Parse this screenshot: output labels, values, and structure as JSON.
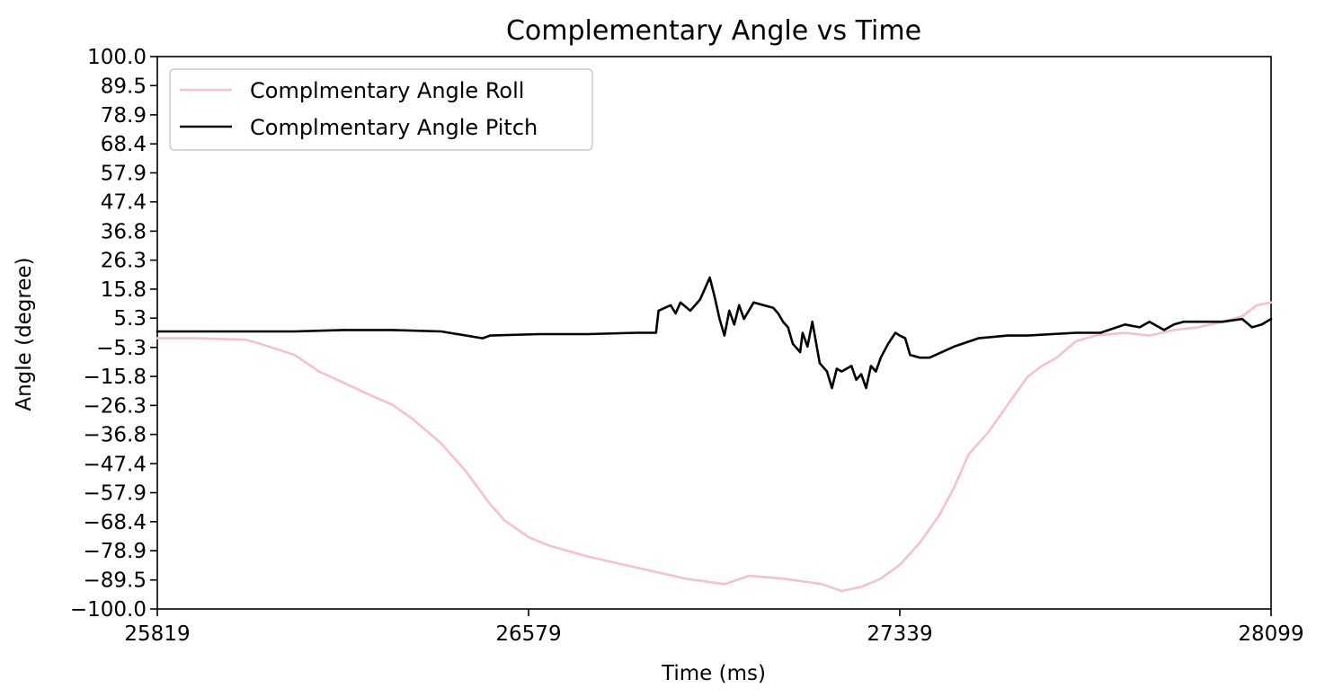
{
  "chart_data": {
    "type": "line",
    "title": "Complementary Angle vs Time",
    "xlabel": "Time (ms)",
    "ylabel": "Angle (degree)",
    "xlim": [
      25819,
      28099
    ],
    "ylim": [
      -100.0,
      100.0
    ],
    "x_ticks": [
      "25819",
      "26579",
      "27339",
      "28099"
    ],
    "y_ticks": [
      "100.0",
      "89.5",
      "78.9",
      "68.4",
      "57.9",
      "47.4",
      "36.8",
      "26.3",
      "15.8",
      "5.3",
      "-5.3",
      "-15.8",
      "-26.3",
      "-36.8",
      "-47.4",
      "-57.9",
      "-68.4",
      "-78.9",
      "-89.5",
      "-100.0"
    ],
    "grid": false,
    "legend_position": "top-left",
    "series": [
      {
        "name": "Complmentary Angle Roll",
        "color": "#f4c2c9",
        "x": [
          25819,
          25900,
          26000,
          26030,
          26100,
          26150,
          26200,
          26260,
          26300,
          26340,
          26400,
          26450,
          26500,
          26530,
          26579,
          26620,
          26700,
          26800,
          26900,
          26980,
          27030,
          27100,
          27180,
          27220,
          27260,
          27300,
          27339,
          27380,
          27420,
          27450,
          27480,
          27520,
          27560,
          27600,
          27630,
          27660,
          27700,
          27740,
          27800,
          27850,
          27900,
          27950,
          28000,
          28040,
          28070,
          28099
        ],
        "values": [
          -2.0,
          -2.0,
          -2.5,
          -4.0,
          -8.0,
          -14.0,
          -18.0,
          -23.0,
          -26.0,
          -31.0,
          -40.0,
          -50.0,
          -62.0,
          -68.0,
          -74.0,
          -77.0,
          -81.0,
          -85.0,
          -89.0,
          -91.0,
          -88.0,
          -89.0,
          -91.0,
          -93.5,
          -92.0,
          -89.0,
          -84.0,
          -76.0,
          -66.0,
          -56.0,
          -44.0,
          -36.0,
          -26.0,
          -16.0,
          -12.0,
          -9.0,
          -3.0,
          -1.0,
          0.0,
          -1.0,
          1.0,
          2.0,
          4.0,
          6.0,
          10.0,
          11.0
        ]
      },
      {
        "name": "Complmentary Angle Pitch",
        "color": "#000000",
        "x": [
          25819,
          25900,
          26000,
          26100,
          26200,
          26300,
          26400,
          26485,
          26500,
          26600,
          26700,
          26800,
          26840,
          26845,
          26870,
          26880,
          26890,
          26910,
          26930,
          26940,
          26950,
          26960,
          26970,
          26980,
          26990,
          27000,
          27010,
          27020,
          27040,
          27060,
          27080,
          27090,
          27100,
          27110,
          27120,
          27135,
          27140,
          27150,
          27160,
          27175,
          27190,
          27200,
          27210,
          27220,
          27240,
          27250,
          27260,
          27270,
          27280,
          27290,
          27300,
          27315,
          27330,
          27339,
          27350,
          27360,
          27380,
          27400,
          27450,
          27500,
          27560,
          27600,
          27700,
          27750,
          27800,
          27830,
          27850,
          27880,
          27900,
          27920,
          27960,
          28000,
          28040,
          28060,
          28080,
          28099
        ],
        "values": [
          0.5,
          0.5,
          0.5,
          0.5,
          1.0,
          1.0,
          0.5,
          -2.0,
          -1.0,
          -0.5,
          -0.5,
          0.0,
          0.0,
          8.0,
          10.0,
          7.0,
          11.0,
          8.0,
          12.0,
          16.0,
          20.0,
          13.0,
          5.0,
          -1.0,
          8.0,
          3.0,
          10.0,
          5.0,
          11.0,
          10.0,
          9.0,
          7.0,
          4.0,
          2.0,
          -4.0,
          -7.0,
          0.0,
          -5.0,
          4.0,
          -11.0,
          -14.0,
          -20.0,
          -13.0,
          -14.0,
          -12.0,
          -17.0,
          -15.0,
          -20.0,
          -12.0,
          -14.0,
          -9.0,
          -4.0,
          0.0,
          -1.0,
          -2.0,
          -8.0,
          -9.0,
          -9.0,
          -5.0,
          -2.0,
          -1.0,
          -1.0,
          0.0,
          0.0,
          3.0,
          2.0,
          4.0,
          1.0,
          3.0,
          4.0,
          4.0,
          4.0,
          5.0,
          2.0,
          3.0,
          5.0
        ]
      }
    ]
  }
}
